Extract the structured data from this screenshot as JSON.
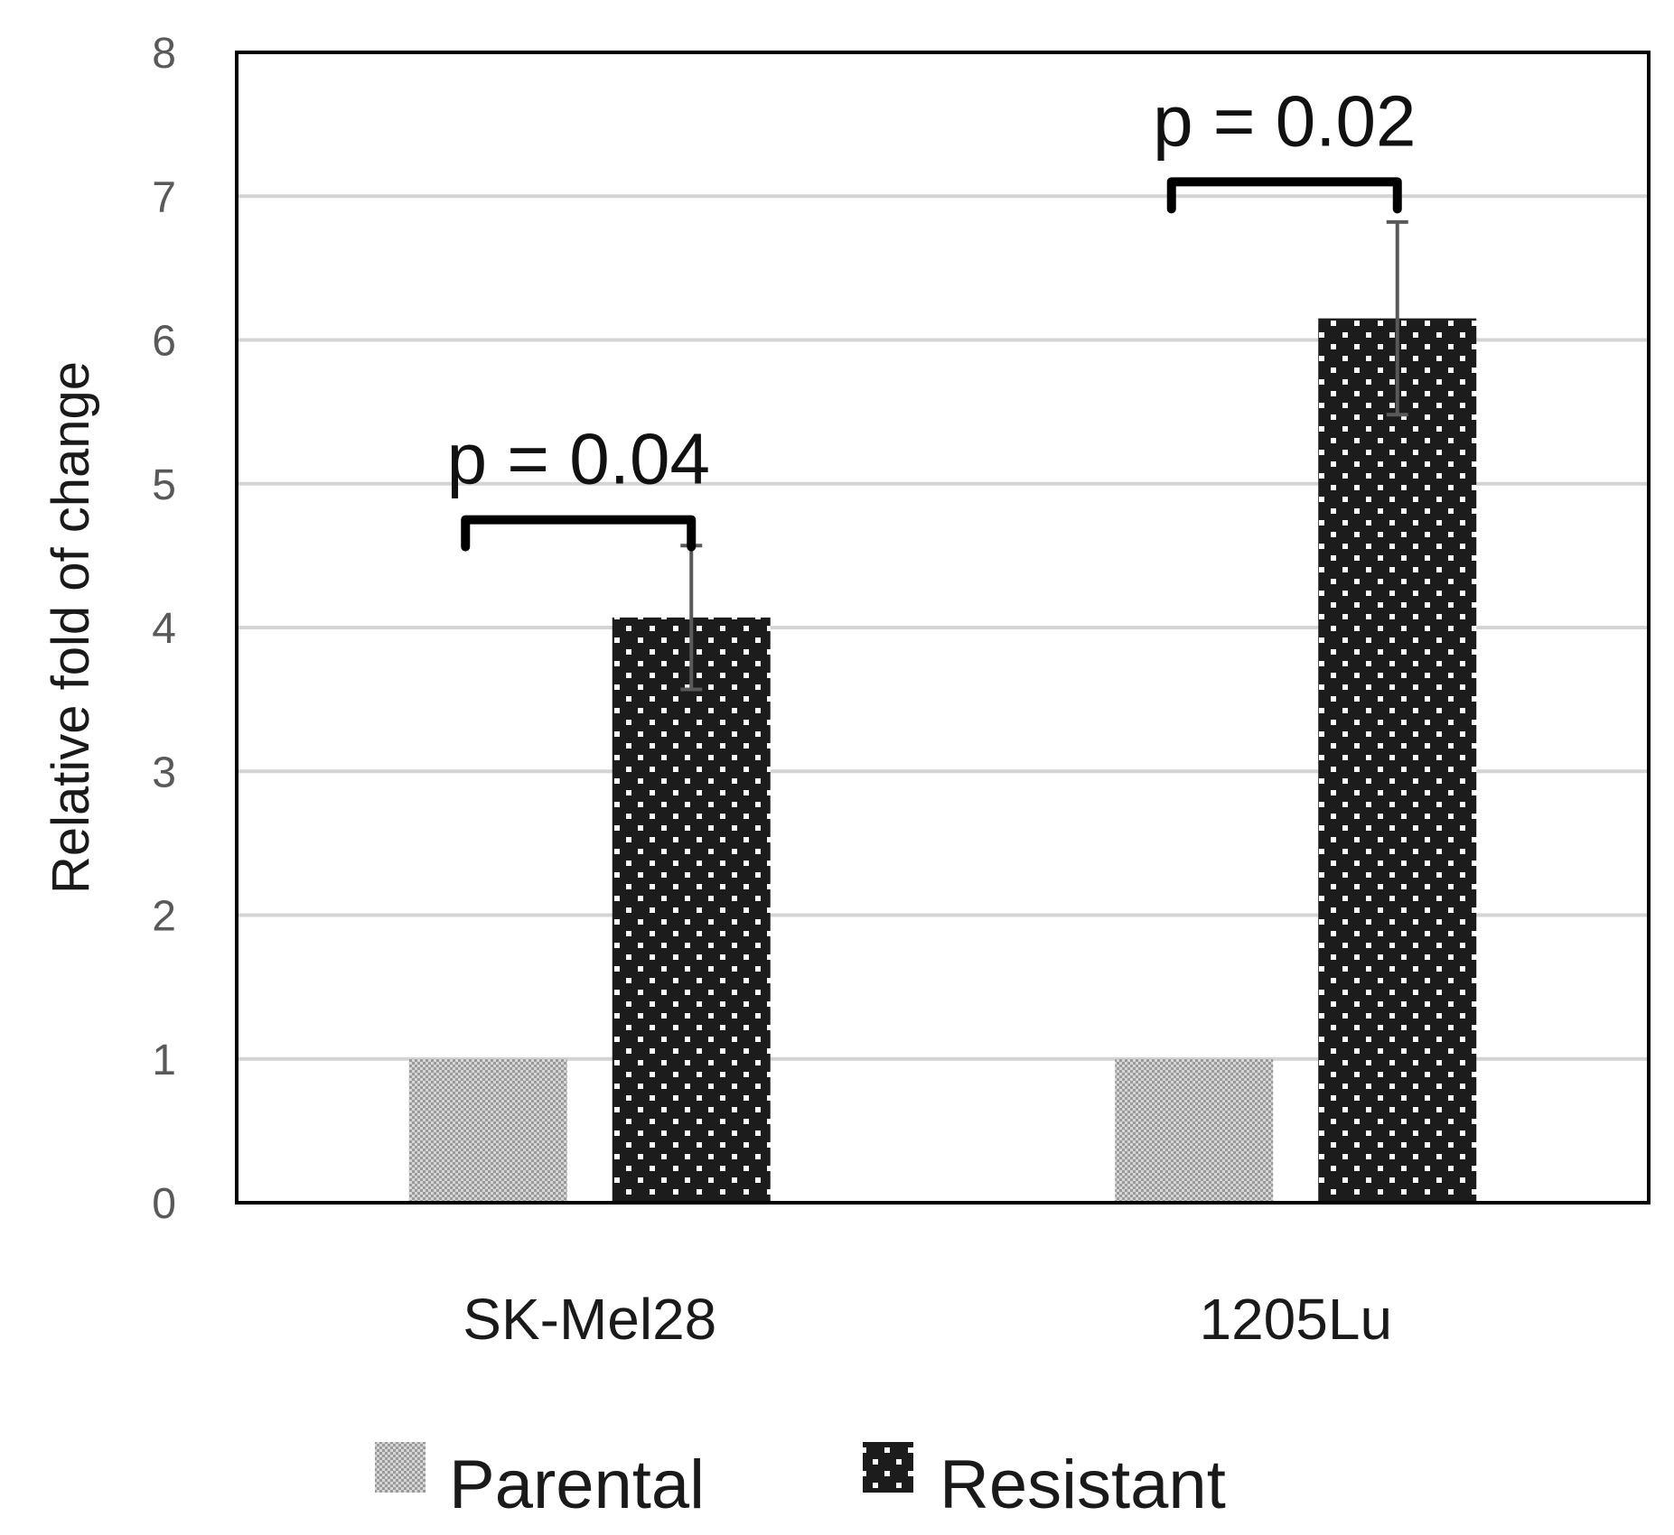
{
  "chart_data": {
    "type": "bar",
    "title": "",
    "xlabel": "",
    "ylabel": "Relative fold of change",
    "ylim": [
      0,
      8
    ],
    "yticks": [
      0,
      1,
      2,
      3,
      4,
      5,
      6,
      7,
      8
    ],
    "grid": true,
    "legend_position": "bottom",
    "categories": [
      "SK-Mel28",
      "1205Lu"
    ],
    "series": [
      {
        "name": "Parental",
        "values": [
          1.0,
          1.0
        ],
        "errors": [
          0,
          0
        ],
        "color": "#c8c8c8"
      },
      {
        "name": "Resistant",
        "values": [
          4.07,
          6.15
        ],
        "errors": [
          0.5,
          0.67
        ],
        "color": "#1c1c1c"
      }
    ],
    "annotations": [
      {
        "category_index": 0,
        "text": "p = 0.04",
        "bracket_y": 4.75
      },
      {
        "category_index": 1,
        "text": "p = 0.02",
        "bracket_y": 7.1
      }
    ]
  }
}
